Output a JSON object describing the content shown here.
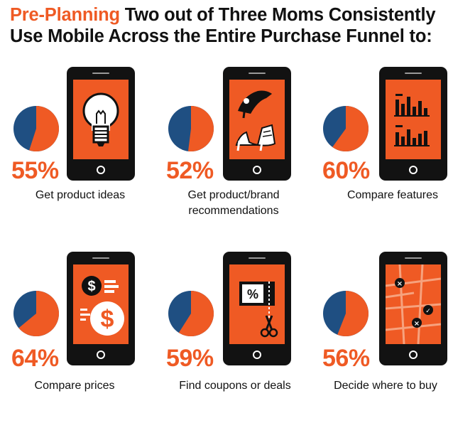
{
  "title": {
    "accent": "Pre-Planning",
    "rest": " Two out of Three Moms Consistently Use Mobile Across the Entire Purchase Funnel to:"
  },
  "colors": {
    "accent": "#ef5a24",
    "pie_blue": "#1f4f82",
    "phone": "#121212"
  },
  "stats": [
    {
      "percent": "55%",
      "value": 55,
      "caption_lines": [
        "Get product ideas"
      ],
      "icon": "light-bulb-icon"
    },
    {
      "percent": "52%",
      "value": 52,
      "caption_lines": [
        "Get product/brand",
        "recommendations"
      ],
      "icon": "high-heels-icon"
    },
    {
      "percent": "60%",
      "value": 60,
      "caption_lines": [
        "Compare features"
      ],
      "icon": "bar-charts-icon"
    },
    {
      "percent": "64%",
      "value": 64,
      "caption_lines": [
        "Compare prices"
      ],
      "icon": "dollar-coins-icon"
    },
    {
      "percent": "59%",
      "value": 59,
      "caption_lines": [
        "Find coupons or deals"
      ],
      "icon": "coupon-scissors-icon"
    },
    {
      "percent": "56%",
      "value": 56,
      "caption_lines": [
        "Decide where to buy"
      ],
      "icon": "map-pins-icon"
    }
  ]
}
